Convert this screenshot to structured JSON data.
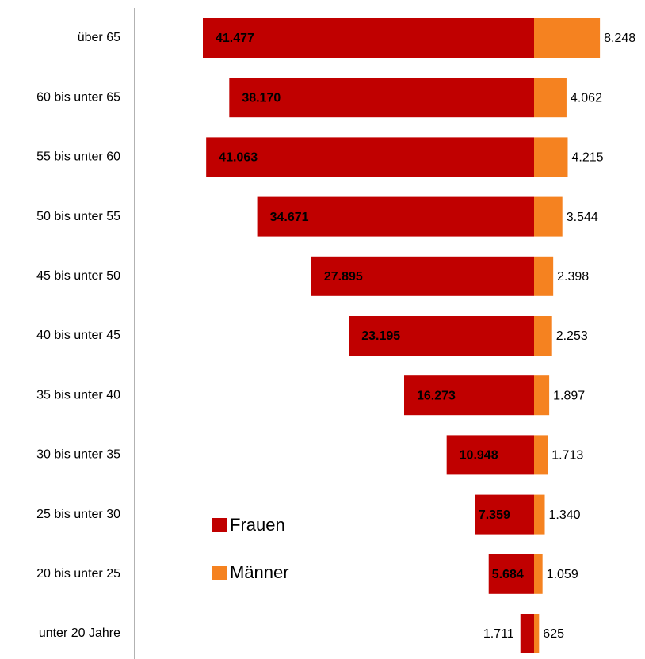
{
  "chart_data": {
    "type": "diverging_bar",
    "categories": [
      "über 65",
      "60 bis unter 65",
      "55 bis unter 60",
      "50 bis unter 55",
      "45 bis unter 50",
      "40 bis unter 45",
      "35 bis unter 40",
      "30 bis unter 35",
      "25 bis unter 30",
      "20 bis unter 25",
      "unter 20 Jahre"
    ],
    "series": [
      {
        "name": "Frauen",
        "color": "#c00000",
        "side": "left",
        "values": [
          41477,
          38170,
          41063,
          34671,
          27895,
          23195,
          16273,
          10948,
          7359,
          5684,
          1711
        ],
        "value_labels": [
          "41.477",
          "38.170",
          "41.063",
          "34.671",
          "27.895",
          "23.195",
          "16.273",
          "10.948",
          "7.359",
          "5.684",
          "1.711"
        ]
      },
      {
        "name": "Männer",
        "color": "#f58220",
        "side": "right",
        "values": [
          8248,
          4062,
          4215,
          3544,
          2398,
          2253,
          1897,
          1713,
          1340,
          1059,
          625
        ],
        "value_labels": [
          "8.248",
          "4.062",
          "4.215",
          "3.544",
          "2.398",
          "2.253",
          "1.897",
          "1.713",
          "1.340",
          "1.059",
          "625"
        ]
      }
    ],
    "legend": "bottom-left"
  }
}
